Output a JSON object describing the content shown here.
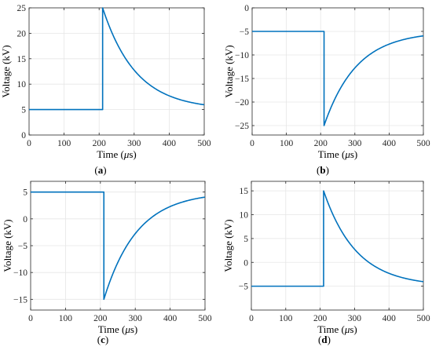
{
  "figure": {
    "captions": [
      "(",
      "a",
      ")",
      "(",
      "b",
      ")",
      "(",
      "c",
      ")",
      "(",
      "d",
      ")"
    ]
  },
  "colors": {
    "line": "#0072BD",
    "grid": "#e6e6e6",
    "axes": "#262626"
  },
  "chart_data": [
    {
      "type": "line",
      "panel": "a",
      "caption": "(a)",
      "xlabel": "Time (μs)",
      "ylabel": "Voltage (kV)",
      "xlim": [
        0,
        500
      ],
      "ylim": [
        0,
        25
      ],
      "xticks": [
        0,
        100,
        200,
        300,
        400,
        500
      ],
      "yticks": [
        0,
        5,
        10,
        15,
        20,
        25
      ],
      "grid": true,
      "step_time": 210,
      "before_value": 5,
      "peak_value": 25,
      "final_value": 5,
      "x": [
        0,
        210,
        210,
        230,
        250,
        275,
        300,
        350,
        400,
        450,
        500
      ],
      "y": [
        5,
        5,
        25,
        20.7,
        17.3,
        14.1,
        11.7,
        8.6,
        7.1,
        6.4,
        6.2
      ]
    },
    {
      "type": "line",
      "panel": "b",
      "caption": "(b)",
      "xlabel": "Time (μs)",
      "ylabel": "Voltage (kV)",
      "xlim": [
        0,
        500
      ],
      "ylim": [
        -27,
        0
      ],
      "xticks": [
        0,
        100,
        200,
        300,
        400,
        500
      ],
      "yticks": [
        -25,
        -20,
        -15,
        -10,
        -5,
        0
      ],
      "grid": true,
      "step_time": 210,
      "before_value": -5,
      "peak_value": -25,
      "final_value": -5,
      "x": [
        0,
        210,
        210,
        230,
        250,
        275,
        300,
        350,
        400,
        450,
        500
      ],
      "y": [
        -5,
        -5,
        -25,
        -20.7,
        -17.3,
        -14.1,
        -11.7,
        -8.6,
        -7.1,
        -6.4,
        -6.2
      ]
    },
    {
      "type": "line",
      "panel": "c",
      "caption": "(c)",
      "xlabel": "Time (μs)",
      "ylabel": "Voltage (kV)",
      "xlim": [
        0,
        500
      ],
      "ylim": [
        -17,
        7
      ],
      "xticks": [
        0,
        100,
        200,
        300,
        400,
        500
      ],
      "yticks": [
        -15,
        -10,
        -5,
        0,
        5
      ],
      "grid": true,
      "step_time": 210,
      "before_value": 5,
      "peak_value": -15,
      "final_value": 5,
      "x": [
        0,
        210,
        210,
        230,
        250,
        275,
        300,
        350,
        400,
        450,
        500
      ],
      "y": [
        5,
        5,
        -15,
        -10.7,
        -7.3,
        -4.1,
        -1.7,
        1.4,
        2.9,
        3.6,
        3.8
      ]
    },
    {
      "type": "line",
      "panel": "d",
      "caption": "(d)",
      "xlabel": "Time (μs)",
      "ylabel": "Voltage (kV)",
      "xlim": [
        0,
        500
      ],
      "ylim": [
        -10,
        17
      ],
      "xticks": [
        0,
        100,
        200,
        300,
        400,
        500
      ],
      "yticks": [
        -5,
        0,
        5,
        10,
        15
      ],
      "grid": true,
      "step_time": 210,
      "before_value": -5,
      "peak_value": 15,
      "final_value": -5,
      "x": [
        0,
        210,
        210,
        230,
        250,
        275,
        300,
        350,
        400,
        450,
        500
      ],
      "y": [
        -5,
        -5,
        15,
        10.7,
        7.3,
        4.1,
        1.7,
        -1.4,
        -2.9,
        -3.6,
        -3.8
      ]
    }
  ]
}
